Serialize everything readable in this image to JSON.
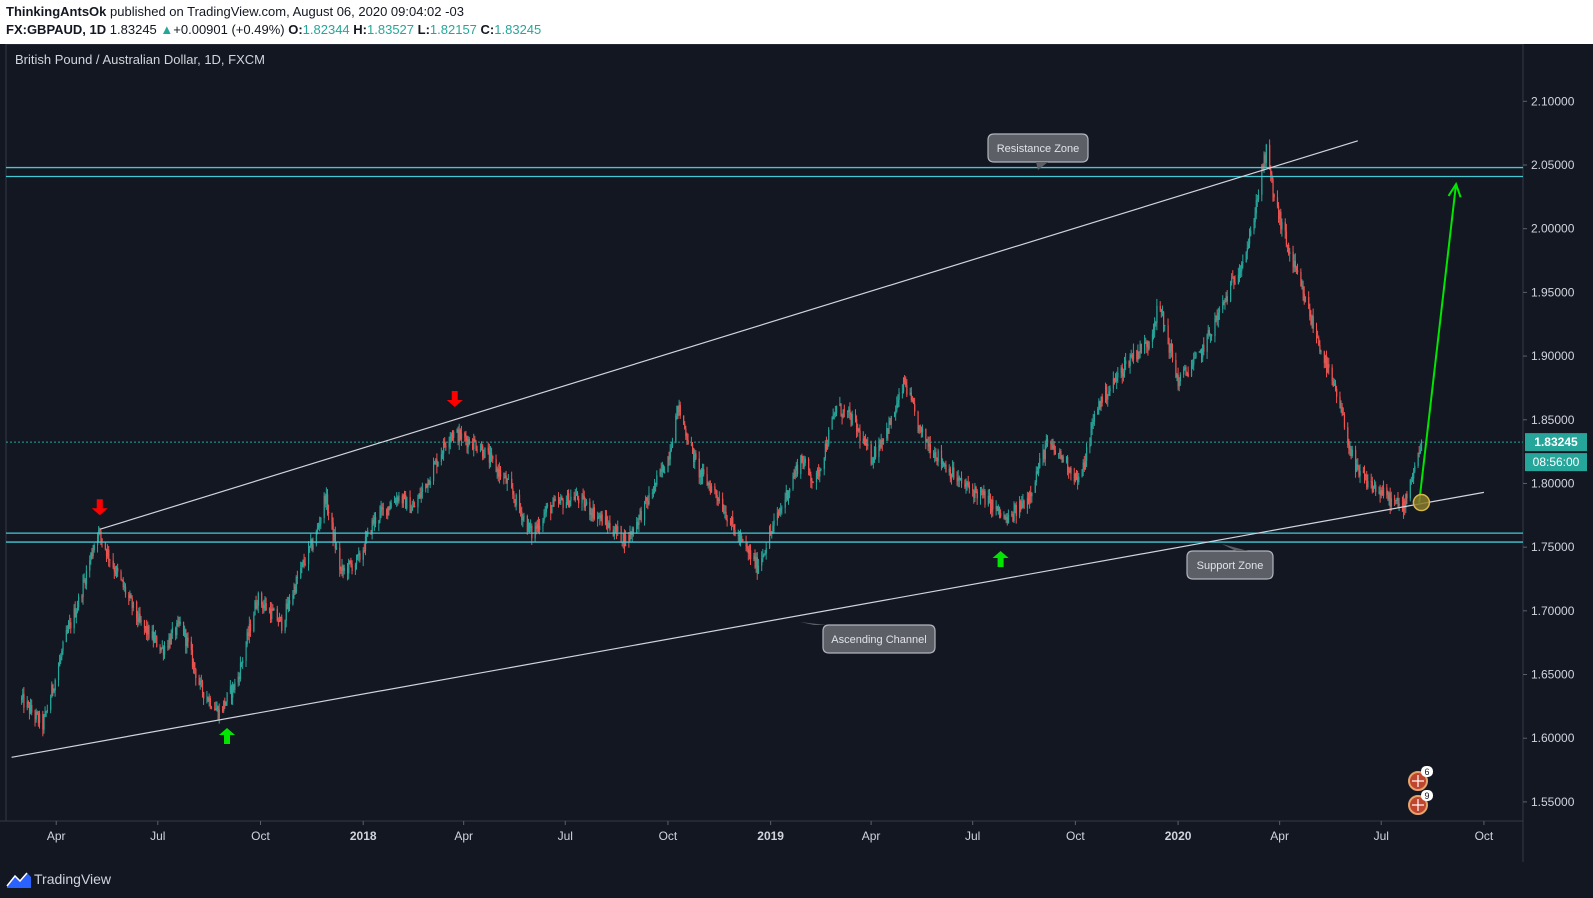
{
  "header": {
    "author": "ThinkingAntsOk",
    "published": "published on TradingView.com, August 06, 2020 09:04:02 -03",
    "symbol": "FX:GBPAUD, 1D",
    "last_price": "1.83245",
    "change_arrow": "▲",
    "change": "+0.00901 (+0.49%)",
    "o_label": "O:",
    "o_value": "1.82344",
    "h_label": "H:",
    "h_value": "1.83527",
    "l_label": "L:",
    "l_value": "1.82157",
    "c_label": "C:",
    "c_value": "1.83245"
  },
  "footer": {
    "brand": "TradingView",
    "logo_icon": "tradingview-logo-icon"
  },
  "chart_data": {
    "type": "candlestick",
    "title": "British Pound / Australian Dollar, 1D, FXCM",
    "y_axis": {
      "ticks": [
        "2.10000",
        "2.05000",
        "2.00000",
        "1.95000",
        "1.90000",
        "1.85000",
        "1.80000",
        "1.75000",
        "1.70000",
        "1.65000",
        "1.60000",
        "1.55000"
      ],
      "ylim": [
        1.535,
        2.145
      ],
      "side": "right"
    },
    "x_axis": {
      "ticks": [
        "Apr",
        "Jul",
        "Oct",
        "2018",
        "Apr",
        "Jul",
        "Oct",
        "2019",
        "Apr",
        "Jul",
        "Oct",
        "2020",
        "Apr",
        "Jul",
        "Oct"
      ],
      "bold_ticks": [
        "2018",
        "2019",
        "2020"
      ]
    },
    "price_path": [
      [
        "2017-03-01",
        1.63
      ],
      [
        "2017-03-20",
        1.61
      ],
      [
        "2017-04-10",
        1.68
      ],
      [
        "2017-04-22",
        1.71
      ],
      [
        "2017-05-08",
        1.763
      ],
      [
        "2017-05-25",
        1.73
      ],
      [
        "2017-06-15",
        1.69
      ],
      [
        "2017-07-05",
        1.67
      ],
      [
        "2017-07-22",
        1.69
      ],
      [
        "2017-08-08",
        1.64
      ],
      [
        "2017-08-25",
        1.62
      ],
      [
        "2017-09-10",
        1.645
      ],
      [
        "2017-09-28",
        1.71
      ],
      [
        "2017-10-20",
        1.69
      ],
      [
        "2017-11-05",
        1.73
      ],
      [
        "2017-11-20",
        1.76
      ],
      [
        "2017-11-28",
        1.79
      ],
      [
        "2017-12-12",
        1.73
      ],
      [
        "2017-12-28",
        1.74
      ],
      [
        "2018-01-10",
        1.77
      ],
      [
        "2018-02-01",
        1.79
      ],
      [
        "2018-02-15",
        1.78
      ],
      [
        "2018-03-01",
        1.805
      ],
      [
        "2018-03-20",
        1.84
      ],
      [
        "2018-04-15",
        1.83
      ],
      [
        "2018-05-10",
        1.8
      ],
      [
        "2018-06-01",
        1.76
      ],
      [
        "2018-06-15",
        1.78
      ],
      [
        "2018-07-10",
        1.79
      ],
      [
        "2018-08-05",
        1.77
      ],
      [
        "2018-08-25",
        1.755
      ],
      [
        "2018-09-15",
        1.79
      ],
      [
        "2018-10-01",
        1.82
      ],
      [
        "2018-10-10",
        1.86
      ],
      [
        "2018-10-28",
        1.81
      ],
      [
        "2018-11-15",
        1.79
      ],
      [
        "2018-12-01",
        1.76
      ],
      [
        "2018-12-20",
        1.735
      ],
      [
        "2019-01-10",
        1.78
      ],
      [
        "2019-01-28",
        1.82
      ],
      [
        "2019-02-10",
        1.8
      ],
      [
        "2019-03-01",
        1.86
      ],
      [
        "2019-03-15",
        1.85
      ],
      [
        "2019-04-01",
        1.82
      ],
      [
        "2019-04-20",
        1.85
      ],
      [
        "2019-05-01",
        1.88
      ],
      [
        "2019-05-15",
        1.84
      ],
      [
        "2019-06-01",
        1.82
      ],
      [
        "2019-06-20",
        1.8
      ],
      [
        "2019-07-10",
        1.79
      ],
      [
        "2019-08-01",
        1.77
      ],
      [
        "2019-08-20",
        1.79
      ],
      [
        "2019-09-05",
        1.83
      ],
      [
        "2019-09-20",
        1.82
      ],
      [
        "2019-10-05",
        1.8
      ],
      [
        "2019-10-20",
        1.86
      ],
      [
        "2019-11-05",
        1.88
      ],
      [
        "2019-11-20",
        1.9
      ],
      [
        "2019-12-05",
        1.91
      ],
      [
        "2019-12-15",
        1.94
      ],
      [
        "2020-01-01",
        1.88
      ],
      [
        "2020-01-20",
        1.9
      ],
      [
        "2020-02-05",
        1.93
      ],
      [
        "2020-02-20",
        1.96
      ],
      [
        "2020-03-05",
        1.99
      ],
      [
        "2020-03-15",
        2.04
      ],
      [
        "2020-03-20",
        2.06
      ],
      [
        "2020-03-28",
        2.02
      ],
      [
        "2020-04-10",
        1.98
      ],
      [
        "2020-04-25",
        1.94
      ],
      [
        "2020-05-10",
        1.9
      ],
      [
        "2020-05-25",
        1.86
      ],
      [
        "2020-06-08",
        1.81
      ],
      [
        "2020-06-20",
        1.8
      ],
      [
        "2020-07-05",
        1.79
      ],
      [
        "2020-07-20",
        1.78
      ],
      [
        "2020-08-06",
        1.83245
      ]
    ],
    "overlays": {
      "resistance_zone": {
        "y1": 2.048,
        "y2": 2.041,
        "label": "Resistance Zone"
      },
      "support_zone": {
        "y1": 1.761,
        "y2": 1.754,
        "label": "Support Zone"
      },
      "ascending_channel": {
        "label": "Ascending Channel",
        "lower": [
          [
            "2017-02-20",
            1.585
          ],
          [
            "2020-10-01",
            1.793
          ]
        ],
        "upper": [
          [
            "2017-05-10",
            1.764
          ],
          [
            "2020-06-10",
            2.069
          ]
        ]
      },
      "projection_arrow": {
        "from": [
          "2020-08-04",
          1.785
        ],
        "to": [
          "2020-09-06",
          2.035
        ],
        "color": "#00e600"
      },
      "target_circle": {
        "at": [
          "2020-08-06",
          1.785
        ]
      },
      "red_down_arrows": [
        [
          "2017-05-10",
          1.775
        ],
        [
          "2018-03-24",
          1.86
        ]
      ],
      "green_up_arrows": [
        [
          "2017-09-01",
          1.608
        ],
        [
          "2019-07-26",
          1.747
        ]
      ]
    },
    "price_label": "1.83245",
    "countdown_label": "08:56:00",
    "colors": {
      "background": "#131722",
      "up": "#26a69a",
      "down": "#ef5350",
      "zone": "#44c8d4",
      "line": "#d1d4dc",
      "arrow_up": "#00e600",
      "arrow_down": "#ff0000"
    },
    "event_badges": [
      {
        "count": "6"
      },
      {
        "count": "9"
      }
    ]
  }
}
